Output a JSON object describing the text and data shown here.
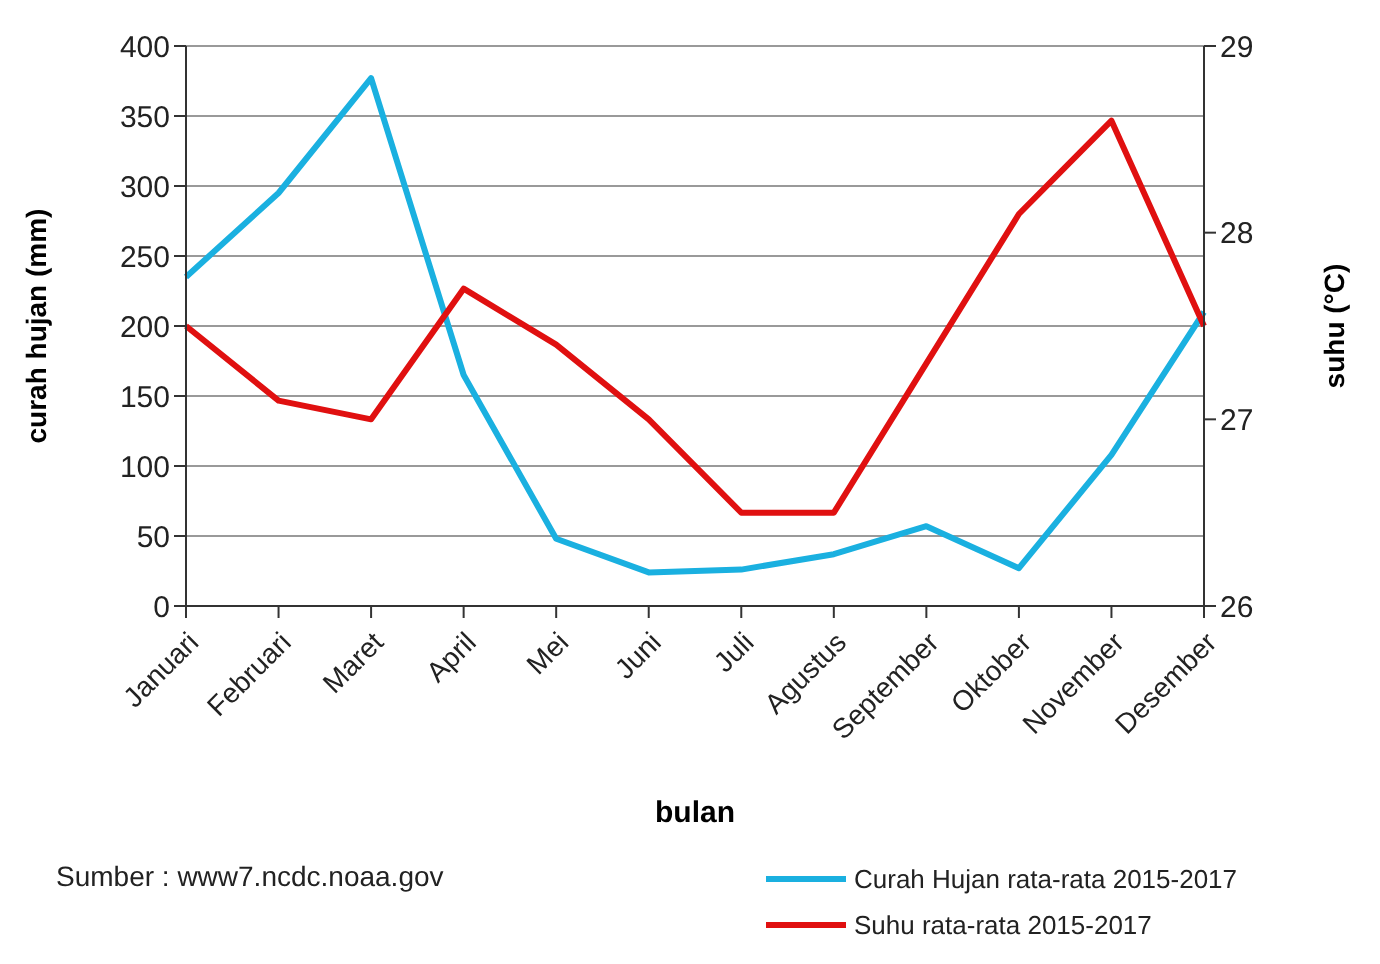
{
  "chart_data": {
    "type": "line",
    "xlabel": "bulan",
    "ylabel": "curah hujan (mm)",
    "y2label": "suhu (°C)",
    "categories": [
      "Januari",
      "Februari",
      "Maret",
      "April",
      "Mei",
      "Juni",
      "Juli",
      "Agustus",
      "September",
      "Oktober",
      "November",
      "Desember"
    ],
    "series": [
      {
        "name": "Curah Hujan rata-rata 2015-2017",
        "color": "#1ab0e0",
        "values": [
          235,
          295,
          377,
          165,
          48,
          24,
          26,
          37,
          57,
          27,
          108,
          210
        ]
      },
      {
        "name": "Suhu rata-rata 2015-2017",
        "color": "#e01010",
        "axis": "y2",
        "values": [
          27.5,
          27.1,
          27.0,
          27.7,
          27.4,
          27.0,
          26.5,
          26.5,
          27.3,
          28.1,
          28.6,
          27.5
        ]
      }
    ],
    "ylim": [
      0,
      400
    ],
    "yticks": [
      0,
      50,
      100,
      150,
      200,
      250,
      300,
      350,
      400
    ],
    "y2lim": [
      26,
      29
    ],
    "y2ticks": [
      26,
      27,
      28,
      29
    ],
    "grid": "y",
    "legend": "bottom right",
    "annotations": [
      "Sumber : www7.ncdc.noaa.gov"
    ]
  }
}
